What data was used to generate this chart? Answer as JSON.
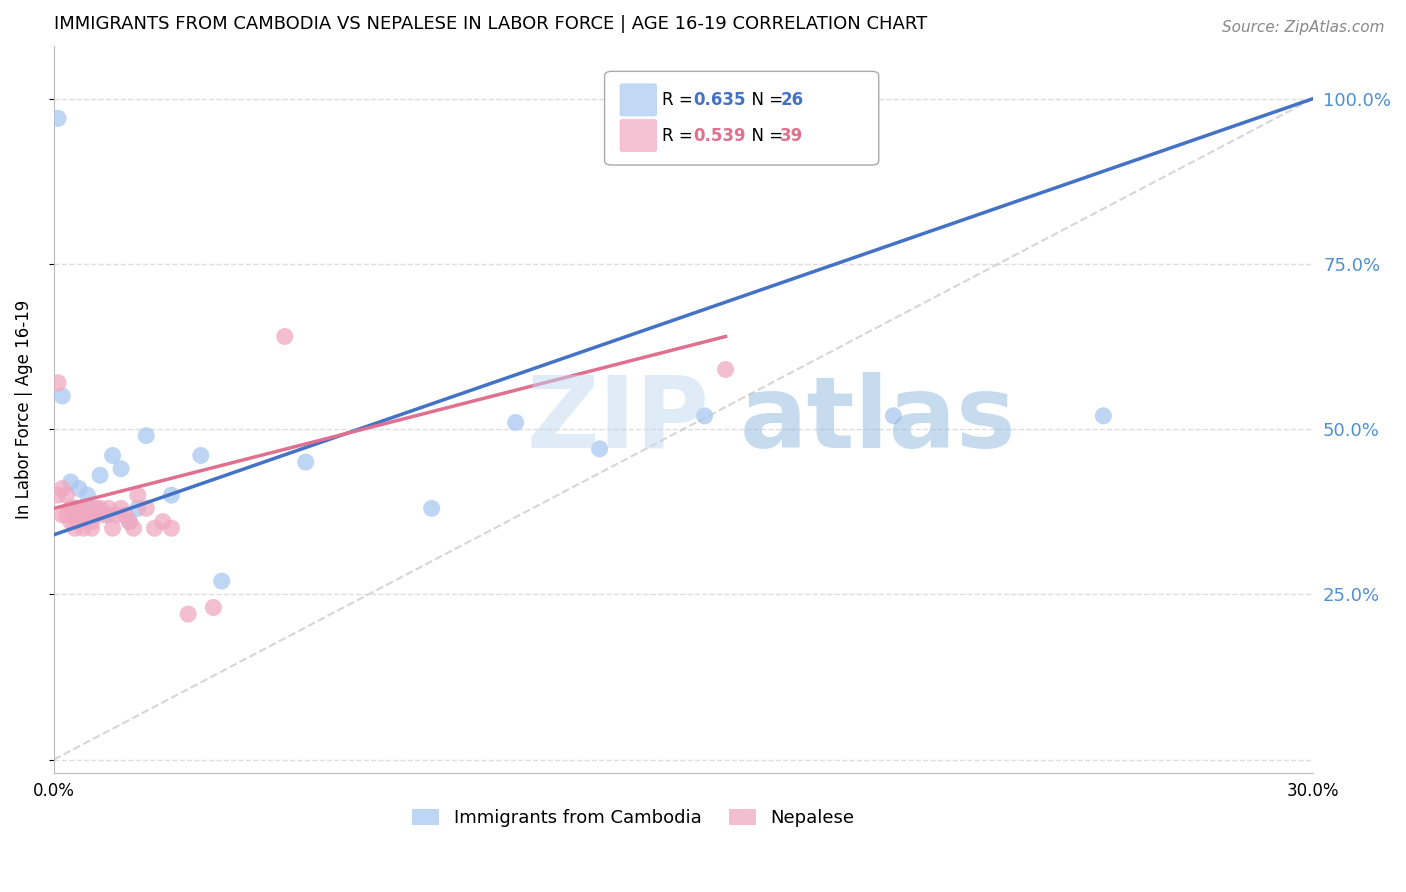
{
  "title": "IMMIGRANTS FROM CAMBODIA VS NEPALESE IN LABOR FORCE | AGE 16-19 CORRELATION CHART",
  "source": "Source: ZipAtlas.com",
  "ylabel": "In Labor Force | Age 16-19",
  "xlim": [
    0.0,
    0.3
  ],
  "ylim": [
    -0.02,
    1.08
  ],
  "yticks": [
    0.0,
    0.25,
    0.5,
    0.75,
    1.0
  ],
  "ytick_labels": [
    "",
    "25.0%",
    "50.0%",
    "75.0%",
    "100.0%"
  ],
  "xticks": [
    0.0,
    0.05,
    0.1,
    0.15,
    0.2,
    0.25,
    0.3
  ],
  "xtick_labels": [
    "0.0%",
    "",
    "",
    "",
    "",
    "",
    "30.0%"
  ],
  "watermark_text": "ZIP",
  "watermark_text2": "atlas",
  "cambodia_color": "#a8c8f0",
  "nepalese_color": "#f0a8c0",
  "line_cambodia_color": "#4472c4",
  "line_nepalese_color": "#e07090",
  "diag_line_color": "#cccccc",
  "right_axis_color": "#5090d0",
  "background_color": "#ffffff",
  "grid_color": "#dddddd",
  "cambodia_x": [
    0.001,
    0.002,
    0.004,
    0.005,
    0.006,
    0.007,
    0.008,
    0.009,
    0.01,
    0.011,
    0.013,
    0.014,
    0.016,
    0.018,
    0.02,
    0.022,
    0.028,
    0.035,
    0.04,
    0.06,
    0.09,
    0.11,
    0.13,
    0.155,
    0.2,
    0.25
  ],
  "cambodia_y": [
    0.97,
    0.55,
    0.42,
    0.38,
    0.41,
    0.38,
    0.4,
    0.37,
    0.38,
    0.43,
    0.37,
    0.46,
    0.44,
    0.36,
    0.38,
    0.49,
    0.4,
    0.46,
    0.27,
    0.45,
    0.38,
    0.51,
    0.47,
    0.52,
    0.52,
    0.52
  ],
  "nepalese_x": [
    0.001,
    0.001,
    0.002,
    0.002,
    0.003,
    0.003,
    0.004,
    0.004,
    0.005,
    0.005,
    0.005,
    0.006,
    0.006,
    0.007,
    0.007,
    0.008,
    0.008,
    0.009,
    0.009,
    0.01,
    0.01,
    0.011,
    0.012,
    0.013,
    0.014,
    0.015,
    0.016,
    0.017,
    0.018,
    0.019,
    0.02,
    0.022,
    0.024,
    0.026,
    0.028,
    0.032,
    0.038,
    0.055,
    0.16
  ],
  "nepalese_y": [
    0.57,
    0.4,
    0.41,
    0.37,
    0.4,
    0.37,
    0.38,
    0.36,
    0.37,
    0.38,
    0.35,
    0.38,
    0.36,
    0.37,
    0.35,
    0.38,
    0.37,
    0.36,
    0.35,
    0.38,
    0.37,
    0.38,
    0.37,
    0.38,
    0.35,
    0.37,
    0.38,
    0.37,
    0.36,
    0.35,
    0.4,
    0.38,
    0.35,
    0.36,
    0.35,
    0.22,
    0.23,
    0.64,
    0.59
  ],
  "cambodia_line_x0": 0.0,
  "cambodia_line_y0": 0.34,
  "cambodia_line_x1": 0.3,
  "cambodia_line_y1": 1.0,
  "nepalese_line_x0": 0.0,
  "nepalese_line_y0": 0.38,
  "nepalese_line_x1": 0.16,
  "nepalese_line_y1": 0.64
}
